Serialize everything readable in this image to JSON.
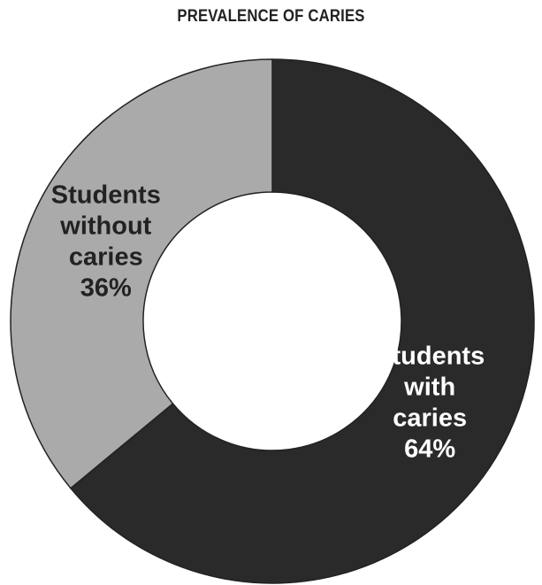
{
  "chart_data": {
    "type": "pie",
    "variant": "donut",
    "title": "PREVALENCE OF CARIES",
    "slices": [
      {
        "label_lines": [
          "Students",
          "with",
          "caries"
        ],
        "value_text": "64%",
        "value": 64,
        "color": "#2a2a2a",
        "label_color": "#ffffff"
      },
      {
        "label_lines": [
          "Students",
          "without",
          "caries"
        ],
        "value_text": "36%",
        "value": 36,
        "color": "#aaaaaa",
        "label_color": "#222222"
      }
    ],
    "start": "top, clockwise",
    "border_color": "#222222"
  }
}
